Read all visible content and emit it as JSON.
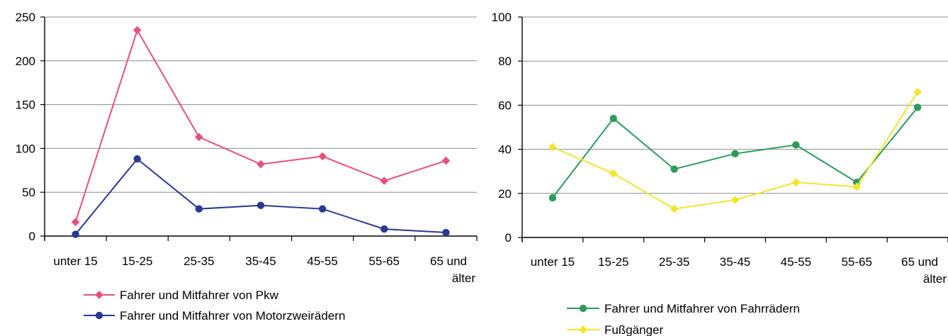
{
  "chart_data": [
    {
      "type": "line",
      "categories": [
        [
          "unter 15"
        ],
        [
          "15-25"
        ],
        [
          "25-35"
        ],
        [
          "35-45"
        ],
        [
          "45-55"
        ],
        [
          "55-65"
        ],
        [
          "65 und",
          "älter"
        ]
      ],
      "ylim": [
        0,
        250
      ],
      "yticks": [
        0,
        50,
        100,
        150,
        200,
        250
      ],
      "grid": true,
      "legend_position": "bottom",
      "series": [
        {
          "name": "Fahrer und Mitfahrer von Pkw",
          "color": "#e6507a",
          "marker": "diamond",
          "values": [
            16,
            235,
            113,
            82,
            91,
            63,
            86
          ]
        },
        {
          "name": "Fahrer und Mitfahrer von Motorzweirädern",
          "color": "#2b3990",
          "marker": "circle",
          "values": [
            2,
            88,
            31,
            35,
            31,
            8,
            4
          ]
        }
      ]
    },
    {
      "type": "line",
      "categories": [
        [
          "unter 15"
        ],
        [
          "15-25"
        ],
        [
          "25-35"
        ],
        [
          "35-45"
        ],
        [
          "45-55"
        ],
        [
          "55-65"
        ],
        [
          "65 und",
          "älter"
        ]
      ],
      "ylim": [
        0,
        100
      ],
      "yticks": [
        0,
        20,
        40,
        60,
        80,
        100
      ],
      "grid": true,
      "legend_position": "bottom",
      "series": [
        {
          "name": "Fahrer und Mitfahrer von Fahrrädern",
          "color": "#2e9a5c",
          "marker": "circle",
          "values": [
            18,
            54,
            31,
            38,
            42,
            25,
            59
          ]
        },
        {
          "name": "Fußgänger",
          "color": "#f2e52c",
          "marker": "diamond",
          "values": [
            41,
            29,
            13,
            17,
            25,
            23,
            66
          ]
        }
      ]
    }
  ]
}
